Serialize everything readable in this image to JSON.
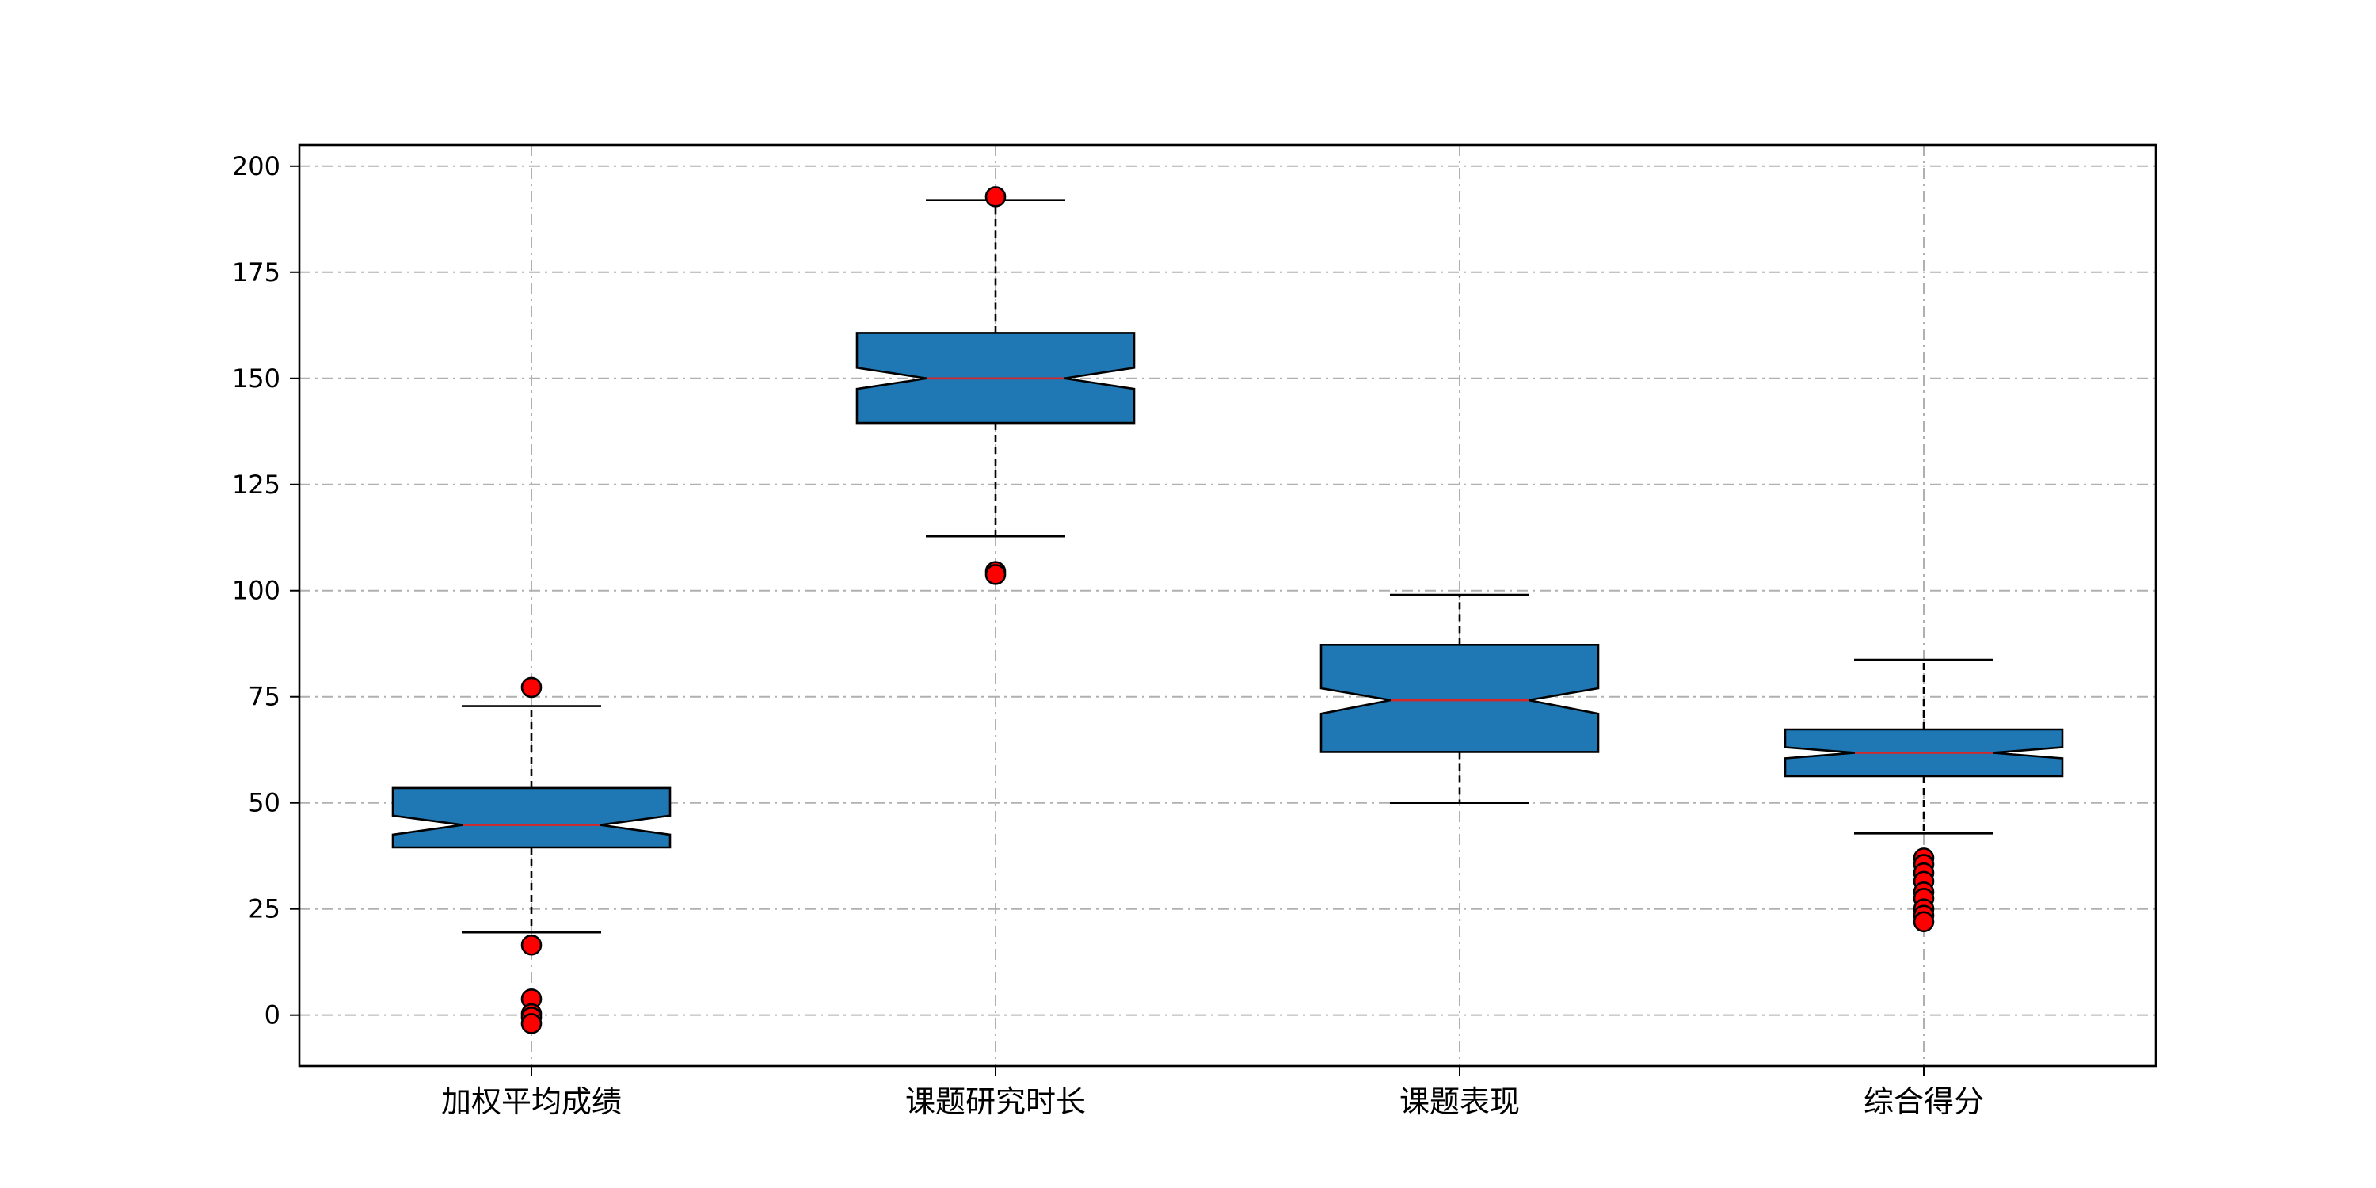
{
  "chart_data": {
    "type": "boxplot",
    "notched": true,
    "grid": true,
    "grid_style": "dash-dot",
    "ylim": [
      -12,
      205
    ],
    "yticks": [
      0,
      25,
      50,
      75,
      100,
      125,
      150,
      175,
      200
    ],
    "ytick_labels": [
      "0",
      "25",
      "50",
      "75",
      "100",
      "125",
      "150",
      "175",
      "200"
    ],
    "categories": [
      "加权平均成绩",
      "课题研究时长",
      "课题表现",
      "综合得分"
    ],
    "boxes": [
      {
        "label": "加权平均成绩",
        "whisker_low": 19.5,
        "q1": 39.5,
        "median": 44.8,
        "q3": 53.5,
        "whisker_high": 72.8,
        "notch_low": 42.5,
        "notch_high": 47.0,
        "outliers": [
          77.2,
          16.5,
          3.8,
          0.3,
          -0.5,
          -2.0
        ]
      },
      {
        "label": "课题研究时长",
        "whisker_low": 112.8,
        "q1": 139.5,
        "median": 150.0,
        "q3": 160.7,
        "whisker_high": 192.0,
        "notch_low": 147.5,
        "notch_high": 152.5,
        "outliers": [
          192.8,
          104.5,
          103.8
        ]
      },
      {
        "label": "课题表现",
        "whisker_low": 50.0,
        "q1": 62.0,
        "median": 74.2,
        "q3": 87.2,
        "whisker_high": 99.0,
        "notch_low": 71.0,
        "notch_high": 77.0,
        "outliers": []
      },
      {
        "label": "综合得分",
        "whisker_low": 42.8,
        "q1": 56.3,
        "median": 61.8,
        "q3": 67.3,
        "whisker_high": 83.7,
        "notch_low": 60.5,
        "notch_high": 63.1,
        "outliers": [
          37.0,
          35.5,
          33.5,
          31.5,
          29.0,
          27.5,
          25.0,
          23.5,
          22.0
        ]
      }
    ],
    "colors": {
      "box_fill": "#1f77b4",
      "box_edge": "#000000",
      "median": "#d62728",
      "outlier_fill": "#ff0000",
      "outlier_edge": "#000000",
      "grid": "#b0b0b0"
    }
  }
}
